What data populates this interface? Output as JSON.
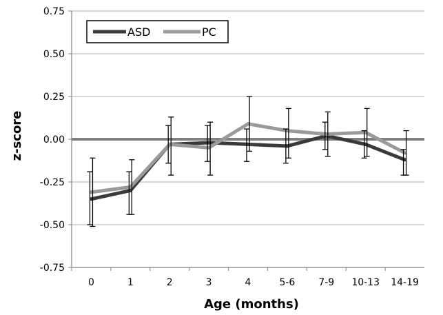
{
  "chart_data": {
    "type": "line",
    "xlabel": "Age (months)",
    "ylabel": "z-score",
    "ylim": [
      -0.75,
      0.75
    ],
    "yticks": [
      "0.75",
      "0.50",
      "0.25",
      "0.00",
      "-0.25",
      "-0.50",
      "-0.75"
    ],
    "categories": [
      "0",
      "1",
      "2",
      "3",
      "4",
      "5-6",
      "7-9",
      "10-13",
      "14-19"
    ],
    "grid": "horizontal",
    "legend_position": "top-left",
    "reference_line": 0.0,
    "series": [
      {
        "name": "ASD",
        "color": "#3a3a3a",
        "values": [
          -0.35,
          -0.3,
          -0.03,
          -0.02,
          -0.03,
          -0.04,
          0.02,
          -0.03,
          -0.12
        ],
        "err_upper": [
          0.16,
          0.11,
          0.11,
          0.1,
          0.09,
          0.1,
          0.08,
          0.08,
          0.06
        ],
        "err_lower": [
          0.15,
          0.14,
          0.11,
          0.11,
          0.1,
          0.1,
          0.08,
          0.08,
          0.09
        ]
      },
      {
        "name": "PC",
        "color": "#9a9a9a",
        "values": [
          -0.31,
          -0.28,
          -0.03,
          -0.05,
          0.09,
          0.05,
          0.03,
          0.04,
          -0.08
        ],
        "err_upper": [
          0.2,
          0.16,
          0.16,
          0.15,
          0.16,
          0.13,
          0.13,
          0.14,
          0.13
        ],
        "err_lower": [
          0.2,
          0.16,
          0.18,
          0.16,
          0.16,
          0.16,
          0.13,
          0.14,
          0.13
        ]
      }
    ]
  },
  "colors": {
    "grid": "#b0b0b0",
    "axis": "#808080",
    "zero_line": "#808080",
    "frame": "#000000"
  }
}
